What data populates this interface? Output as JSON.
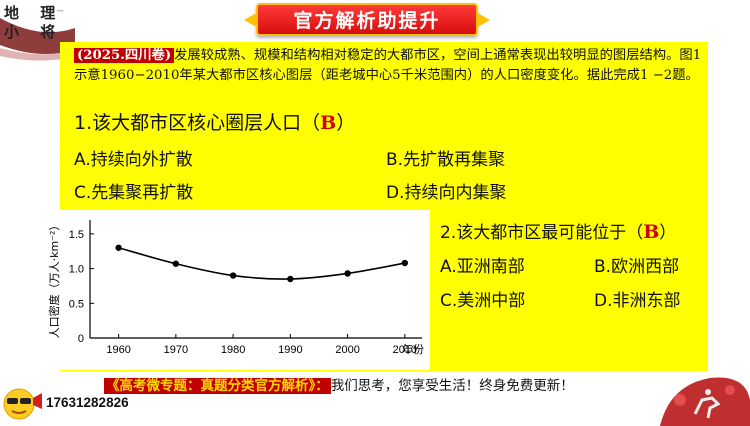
{
  "logo": {
    "line1": "地 理",
    "line2": "小 将",
    "glyph": "~"
  },
  "banner": {
    "title": "官方解析助提升"
  },
  "question": {
    "source_tag": "(2025.四川卷)",
    "stem": "发展较成熟、规模和结构相对稳定的大都市区，空间上通常表现出较明显的图层结构。图1示意1960−2010年某大都市区核心图层（距老城中心5千米范围内）的人口密度变化。据此完成1 −2题。"
  },
  "q1": {
    "prompt_pre": "1.该大都市区核心圈层人口（",
    "answer": "B",
    "prompt_post": "）",
    "options": {
      "A": "A.持续向外扩散",
      "B": "B.先扩散再集聚",
      "C": "C.先集聚再扩散",
      "D": "D.持续向内集聚"
    }
  },
  "q2": {
    "prompt_pre": "2.该大都市区最可能位于（",
    "answer": "B",
    "prompt_post": "）",
    "options": {
      "A": "A.亚洲南部",
      "B": "B.欧洲西部",
      "C": "C.美洲中部",
      "D": "D.非洲东部"
    }
  },
  "chart_data": {
    "type": "line",
    "x": [
      1960,
      1970,
      1980,
      1990,
      2000,
      2010
    ],
    "values": [
      1.3,
      1.07,
      0.9,
      0.85,
      0.93,
      1.08
    ],
    "yticks": [
      "0",
      "0.5",
      "1.0",
      "1.5"
    ],
    "xticks": [
      "1960",
      "1970",
      "1980",
      "1990",
      "2000",
      "2010"
    ],
    "ylim": [
      0,
      1.7
    ],
    "xlim": [
      1955,
      2013
    ],
    "ylabel": "人口密度（万人·km⁻²）",
    "xlabel": "年份",
    "line_color": "#000000"
  },
  "footer": {
    "highlight": "《高考微专题：真题分类官方解析》：",
    "text": "我们思考，您享受生活！终身免费更新！",
    "phone": "17631282826"
  },
  "colors": {
    "panel": "#ffff00",
    "banner": "#e01010",
    "accent": "#c00000"
  },
  "icons": {
    "emoji": "sunglasses-face-icon",
    "megaphone": "megaphone-icon",
    "corner_art": "horse-rider-icon"
  }
}
